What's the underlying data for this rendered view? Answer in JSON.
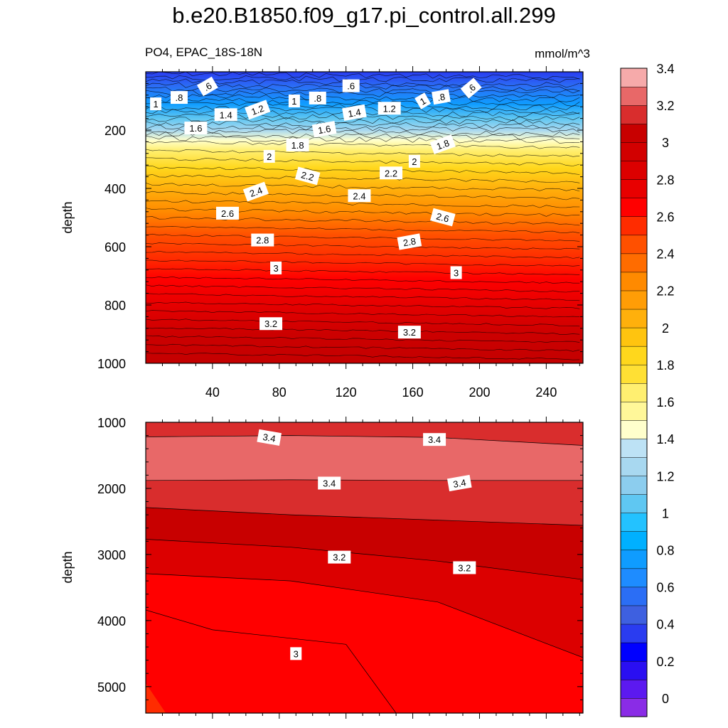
{
  "title": "b.e20.B1850.f09_g17.pi_control.all.299",
  "subtitle": "PO4, EPAC_18S-18N",
  "units": "mmol/m^3",
  "colorbar": {
    "labels": [
      "3.4",
      "3.2",
      "3",
      "2.8",
      "2.6",
      "2.4",
      "2.2",
      "2",
      "1.8",
      "1.6",
      "1.4",
      "1.2",
      "1",
      "0.8",
      "0.6",
      "0.4",
      "0.2",
      "0"
    ],
    "colors": [
      "#8a2ce6",
      "#5c19f0",
      "#2a0ff2",
      "#0000ff",
      "#2a3cf0",
      "#3e60e0",
      "#2b6ef5",
      "#1e8cff",
      "#0f9cff",
      "#00b0ff",
      "#23c2ff",
      "#5fc7f2",
      "#8ccdee",
      "#a8d8f0",
      "#bde2f5",
      "#ffffcc",
      "#fff799",
      "#ffef70",
      "#ffe034",
      "#ffd71c",
      "#ffc40f",
      "#ffb00c",
      "#ff9d06",
      "#ff8a00",
      "#ff6c00",
      "#ff5000",
      "#ff2c00",
      "#ff0000",
      "#e80000",
      "#dc0000",
      "#d20000",
      "#c80000",
      "#d92d2d",
      "#e86868",
      "#f6aaaa"
    ]
  },
  "chart_data": [
    {
      "type": "contour",
      "panel": "upper",
      "ylabel": "depth",
      "xlabel": "",
      "xlim": [
        0,
        262
      ],
      "ylim": [
        0,
        1000
      ],
      "y_reversed": true,
      "xticks": [
        "40",
        "80",
        "120",
        "160",
        "200",
        "240"
      ],
      "yticks": [
        "200",
        "400",
        "600",
        "800",
        "1000"
      ],
      "contour_labels": [
        {
          "value": ".6",
          "x": 37,
          "y": 50,
          "angle": -30
        },
        {
          "value": ".8",
          "x": 20,
          "y": 88,
          "angle": 0
        },
        {
          "value": "1",
          "x": 6,
          "y": 110,
          "angle": 0
        },
        {
          "value": ".6",
          "x": 123,
          "y": 48,
          "angle": 0
        },
        {
          "value": ".8",
          "x": 103,
          "y": 90,
          "angle": 0
        },
        {
          "value": "1",
          "x": 89,
          "y": 100,
          "angle": 0
        },
        {
          "value": ".8",
          "x": 177,
          "y": 86,
          "angle": -10
        },
        {
          "value": ".6",
          "x": 195,
          "y": 56,
          "angle": -40
        },
        {
          "value": "1",
          "x": 166,
          "y": 100,
          "angle": -30
        },
        {
          "value": "1.4",
          "x": 48,
          "y": 147,
          "angle": 0
        },
        {
          "value": "1.2",
          "x": 67,
          "y": 130,
          "angle": -20
        },
        {
          "value": "1.4",
          "x": 125,
          "y": 140,
          "angle": -10
        },
        {
          "value": "1.2",
          "x": 146,
          "y": 125,
          "angle": 0
        },
        {
          "value": "1.6",
          "x": 30,
          "y": 193,
          "angle": 0
        },
        {
          "value": "1.6",
          "x": 107,
          "y": 197,
          "angle": -10
        },
        {
          "value": "1.8",
          "x": 91,
          "y": 251,
          "angle": 0
        },
        {
          "value": "1.8",
          "x": 178,
          "y": 249,
          "angle": -20
        },
        {
          "value": "2",
          "x": 74,
          "y": 290,
          "angle": 0
        },
        {
          "value": "2",
          "x": 161,
          "y": 307,
          "angle": 0
        },
        {
          "value": "2.2",
          "x": 97,
          "y": 357,
          "angle": 15
        },
        {
          "value": "2.2",
          "x": 147,
          "y": 347,
          "angle": 0
        },
        {
          "value": "2.4",
          "x": 66,
          "y": 411,
          "angle": -20
        },
        {
          "value": "2.4",
          "x": 128,
          "y": 425,
          "angle": 0
        },
        {
          "value": "2.6",
          "x": 49,
          "y": 485,
          "angle": 0
        },
        {
          "value": "2.6",
          "x": 178,
          "y": 499,
          "angle": 15
        },
        {
          "value": "2.8",
          "x": 70,
          "y": 577,
          "angle": 0
        },
        {
          "value": "2.8",
          "x": 158,
          "y": 583,
          "angle": -10
        },
        {
          "value": "3",
          "x": 78,
          "y": 673,
          "angle": 0
        },
        {
          "value": "3",
          "x": 186,
          "y": 689,
          "angle": 0
        },
        {
          "value": "3.2",
          "x": 75,
          "y": 864,
          "angle": 0
        },
        {
          "value": "3.2",
          "x": 158,
          "y": 893,
          "angle": 0
        }
      ]
    },
    {
      "type": "contour",
      "panel": "lower",
      "ylabel": "depth",
      "xlim": [
        0,
        262
      ],
      "ylim": [
        1000,
        5400
      ],
      "y_reversed": true,
      "yticks": [
        "1000",
        "2000",
        "3000",
        "4000",
        "5000"
      ],
      "bands": [
        {
          "top": [
            1000,
            1000,
            1000,
            1000
          ],
          "level": 3.3
        },
        {
          "top": [
            1220,
            1200,
            1230,
            1350
          ],
          "level": 3.5
        },
        {
          "top": [
            1880,
            1870,
            1880,
            1880
          ],
          "level": 3.3
        },
        {
          "top": [
            2290,
            2400,
            2480,
            2560
          ],
          "level": 3.2
        },
        {
          "top": [
            2770,
            2890,
            3100,
            3380
          ],
          "level": 3.1
        },
        {
          "top": [
            3290,
            3400,
            3720,
            4560
          ],
          "level": 3.0
        }
      ],
      "contour_labels": [
        {
          "value": "3.4",
          "x": 74,
          "y": 1230,
          "angle": 10
        },
        {
          "value": "3.4",
          "x": 173,
          "y": 1260,
          "angle": 0
        },
        {
          "value": "3.4",
          "x": 110,
          "y": 1920,
          "angle": 0
        },
        {
          "value": "3.4",
          "x": 188,
          "y": 1920,
          "angle": -10
        },
        {
          "value": "3.2",
          "x": 116,
          "y": 3040,
          "angle": 0
        },
        {
          "value": "3.2",
          "x": 191,
          "y": 3200,
          "angle": 0
        },
        {
          "value": "3",
          "x": 90,
          "y": 4500,
          "angle": 0
        }
      ]
    }
  ]
}
